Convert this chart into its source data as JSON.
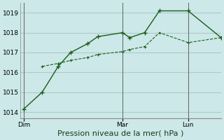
{
  "bg_color": "#cce8e8",
  "grid_color": "#b0c8c8",
  "line_color": "#1a5c1a",
  "xlabel": "Pression niveau de la mer( hPa )",
  "ylim": [
    1013.7,
    1019.5
  ],
  "yticks": [
    1014,
    1015,
    1016,
    1017,
    1018,
    1019
  ],
  "day_labels": [
    "Dim",
    "Mar",
    "Lun"
  ],
  "day_positions": [
    0.0,
    8.0,
    13.33
  ],
  "xlim": [
    -0.3,
    16.0
  ],
  "series1_x": [
    0.0,
    1.5,
    2.8,
    3.8,
    5.2,
    6.0,
    8.0,
    8.6,
    9.8,
    11.0,
    13.33,
    16.0
  ],
  "series1_y": [
    1014.15,
    1015.0,
    1016.3,
    1017.0,
    1017.45,
    1017.8,
    1018.0,
    1017.75,
    1018.0,
    1019.1,
    1019.1,
    1017.75
  ],
  "series2_x": [
    1.5,
    2.8,
    3.8,
    5.2,
    6.0,
    8.0,
    8.6,
    9.8,
    11.0,
    13.33,
    16.0
  ],
  "series2_y": [
    1016.3,
    1016.45,
    1016.6,
    1016.75,
    1016.9,
    1017.05,
    1017.15,
    1017.3,
    1018.0,
    1017.5,
    1017.75
  ],
  "vline_color": "#666666",
  "tick_label_fontsize": 6.5,
  "xlabel_fontsize": 8
}
